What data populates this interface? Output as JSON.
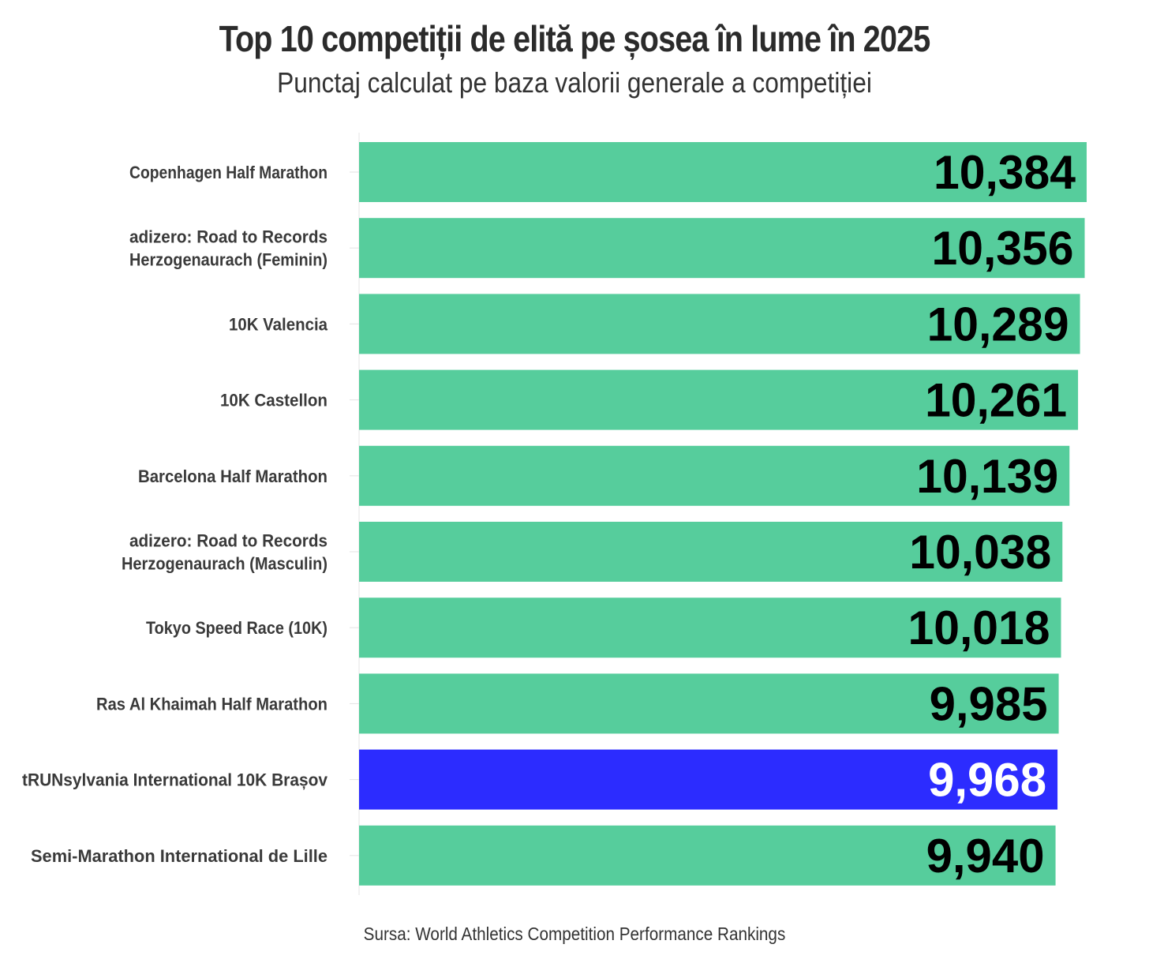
{
  "title": "Top 10 competiții de elită pe șosea în lume în 2025",
  "subtitle": "Punctaj calculat pe baza valorii generale a competiției",
  "source": "Sursa: World Athletics Competition Performance Rankings",
  "colors": {
    "bar": "#56cd9c",
    "highlight": "#2c2cff",
    "value_text": "#000000",
    "highlight_value_text": "#ffffff"
  },
  "chart_data": {
    "type": "bar",
    "orientation": "horizontal",
    "title": "Top 10 competiții de elită pe șosea în lume în 2025",
    "subtitle": "Punctaj calculat pe baza valorii generale a competiției",
    "xlabel": "",
    "ylabel": "",
    "grid": false,
    "highlight_index": 8,
    "categories": [
      [
        "Copenhagen Half Marathon"
      ],
      [
        "adizero: Road to Records",
        "Herzogenaurach (Feminin)"
      ],
      [
        "10K Valencia"
      ],
      [
        "10K Castellon"
      ],
      [
        "Barcelona Half Marathon"
      ],
      [
        "adizero: Road to Records",
        "Herzogenaurach (Masculin)"
      ],
      [
        "Tokyo Speed Race (10K)"
      ],
      [
        "Ras Al Khaimah Half Marathon"
      ],
      [
        "tRUNsylvania International 10K Brașov"
      ],
      [
        "Semi-Marathon International de Lille"
      ]
    ],
    "values": [
      10384,
      10356,
      10289,
      10261,
      10139,
      10038,
      10018,
      9985,
      9968,
      9940
    ],
    "value_labels": [
      "10,384",
      "10,356",
      "10,289",
      "10,261",
      "10,139",
      "10,038",
      "10,018",
      "9,985",
      "9,968",
      "9,940"
    ],
    "xlim": [
      0,
      10384
    ]
  }
}
